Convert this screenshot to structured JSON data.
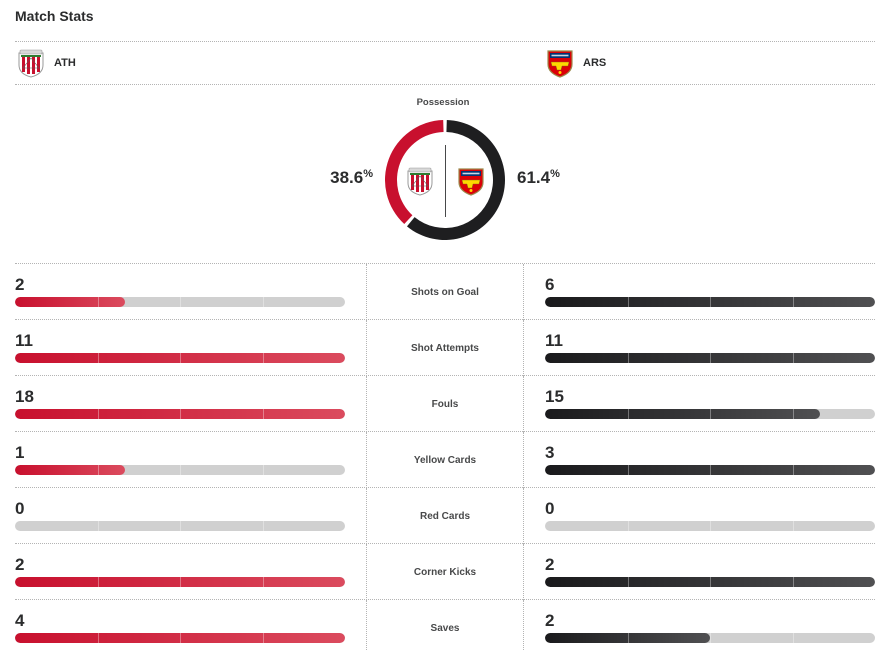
{
  "header": {
    "title": "Match Stats"
  },
  "teams": {
    "home": {
      "abbrev": "ATH",
      "crest_icon": "athletic-bilbao-crest-icon",
      "color": "#c8102e"
    },
    "away": {
      "abbrev": "ARS",
      "crest_icon": "arsenal-crest-icon",
      "color": "#1e1e20"
    }
  },
  "possession": {
    "label": "Possession",
    "home_value": "38.6",
    "away_value": "61.4",
    "unit": "%",
    "home_fraction": 0.386,
    "away_fraction": 0.614
  },
  "stats": [
    {
      "label": "Shots on Goal",
      "home": "2",
      "away": "6",
      "home_fill": 0.333,
      "away_fill": 1.0
    },
    {
      "label": "Shot Attempts",
      "home": "11",
      "away": "11",
      "home_fill": 1.0,
      "away_fill": 1.0
    },
    {
      "label": "Fouls",
      "home": "18",
      "away": "15",
      "home_fill": 1.0,
      "away_fill": 0.833
    },
    {
      "label": "Yellow Cards",
      "home": "1",
      "away": "3",
      "home_fill": 0.333,
      "away_fill": 1.0
    },
    {
      "label": "Red Cards",
      "home": "0",
      "away": "0",
      "home_fill": 0.0,
      "away_fill": 0.0
    },
    {
      "label": "Corner Kicks",
      "home": "2",
      "away": "2",
      "home_fill": 1.0,
      "away_fill": 1.0
    },
    {
      "label": "Saves",
      "home": "4",
      "away": "2",
      "home_fill": 1.0,
      "away_fill": 0.5
    }
  ]
}
